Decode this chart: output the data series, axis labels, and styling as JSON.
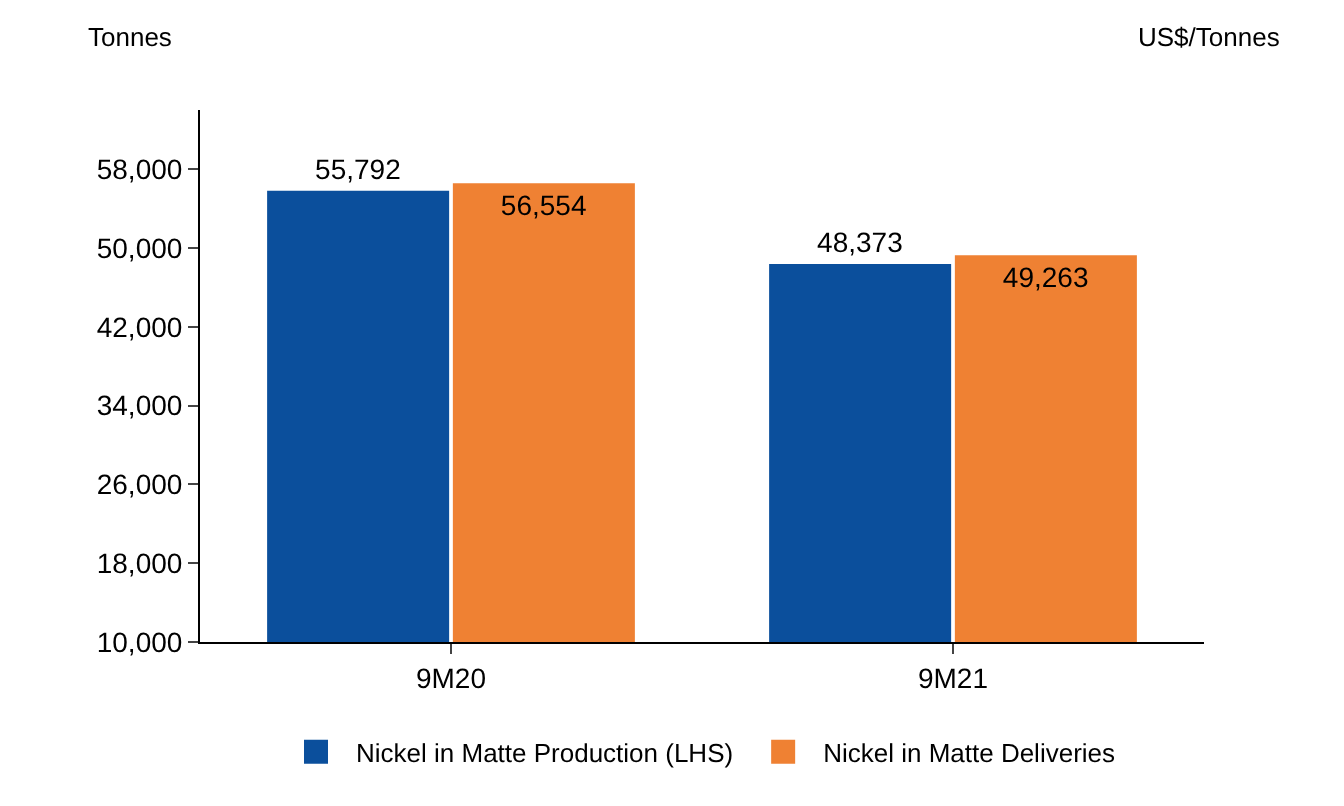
{
  "chart_data": {
    "type": "bar",
    "ylabel": "Tonnes",
    "y2label": "US$/Tonnes",
    "categories": [
      "9M20",
      "9M21"
    ],
    "series": [
      {
        "name": "Nickel in Matte Production (LHS)",
        "color": "#0b4f9c",
        "values": [
          55792,
          48373
        ],
        "value_labels": [
          "55,792",
          "48,373"
        ]
      },
      {
        "name": "Nickel in Matte Deliveries",
        "color": "#ef8133",
        "values": [
          56554,
          49263
        ],
        "value_labels": [
          "56,554",
          "49,263"
        ]
      }
    ],
    "ylim": [
      10000,
      64000
    ],
    "yticks": [
      {
        "value": 10000,
        "label": "10,000"
      },
      {
        "value": 18000,
        "label": "18,000"
      },
      {
        "value": 26000,
        "label": "26,000"
      },
      {
        "value": 34000,
        "label": "34,000"
      },
      {
        "value": 42000,
        "label": "42,000"
      },
      {
        "value": 50000,
        "label": "50,000"
      },
      {
        "value": 58000,
        "label": "58,000"
      }
    ],
    "grid": false,
    "legend": "bottom"
  }
}
